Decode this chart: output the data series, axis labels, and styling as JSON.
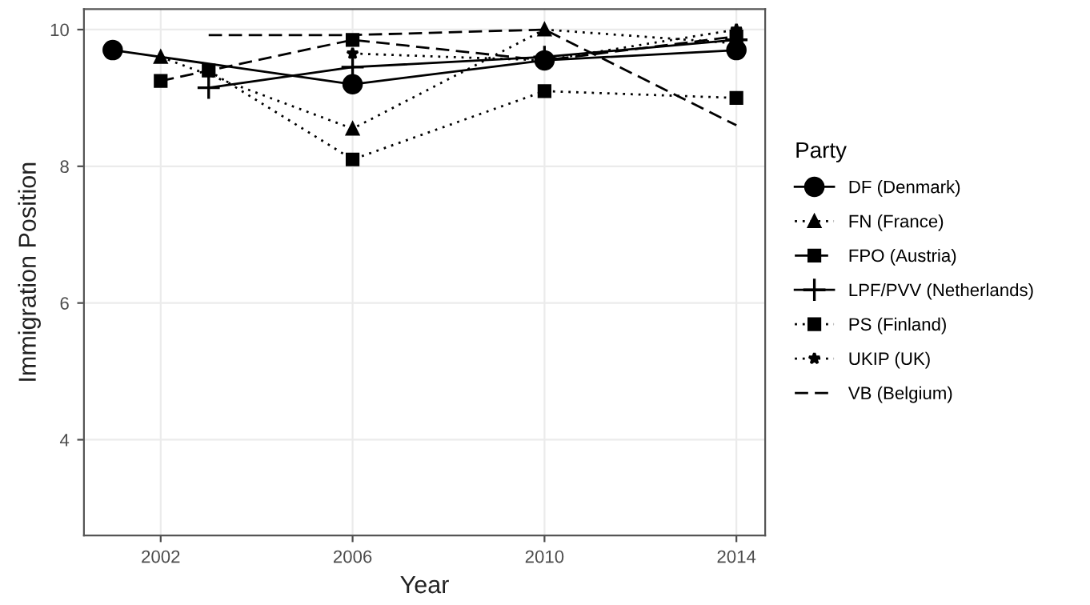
{
  "chart_data": {
    "type": "line",
    "xlabel": "Year",
    "ylabel": "Immigration Position",
    "legend_title": "Party",
    "legend": "right",
    "grid": true,
    "xlim": [
      2000.4,
      2014.6
    ],
    "ylim": [
      2.6,
      10.3
    ],
    "xticks": [
      2002,
      2006,
      2010,
      2014
    ],
    "yticks": [
      4,
      6,
      8,
      10
    ],
    "series": [
      {
        "name": "DF (Denmark)",
        "color": "#000000",
        "marker": "circle",
        "line_style": "solid",
        "x": [
          2001,
          2006,
          2010,
          2014
        ],
        "values": [
          9.7,
          9.2,
          9.55,
          9.7
        ]
      },
      {
        "name": "FN (France)",
        "color": "#000000",
        "marker": "triangle",
        "line_style": "dotted",
        "x": [
          2002,
          2006,
          2010,
          2014
        ],
        "values": [
          9.6,
          8.55,
          10.0,
          9.8
        ]
      },
      {
        "name": "FPO (Austria)",
        "color": "#000000",
        "marker": "square",
        "line_style": "dashed",
        "x": [
          2002,
          2006,
          2010,
          2014
        ],
        "values": [
          9.25,
          9.85,
          9.55,
          9.9
        ]
      },
      {
        "name": "LPF/PVV (Netherlands)",
        "color": "#000000",
        "marker": "cross",
        "line_style": "solid",
        "x": [
          2003,
          2006,
          2010,
          2014
        ],
        "values": [
          9.15,
          9.45,
          9.6,
          9.85
        ]
      },
      {
        "name": "PS (Finland)",
        "color": "#000000",
        "marker": "square",
        "line_style": "dotted",
        "x": [
          2003,
          2006,
          2010,
          2014
        ],
        "values": [
          9.4,
          8.1,
          9.1,
          9.0
        ]
      },
      {
        "name": "UKIP (UK)",
        "color": "#000000",
        "marker": "star",
        "line_style": "dotted",
        "x": [
          2006,
          2010,
          2014
        ],
        "values": [
          9.65,
          9.55,
          10.0
        ]
      },
      {
        "name": "VB (Belgium)",
        "color": "#000000",
        "marker": "none",
        "line_style": "dashed",
        "x": [
          2003,
          2006,
          2010,
          2014
        ],
        "values": [
          9.92,
          9.92,
          10.0,
          8.6
        ]
      }
    ]
  }
}
